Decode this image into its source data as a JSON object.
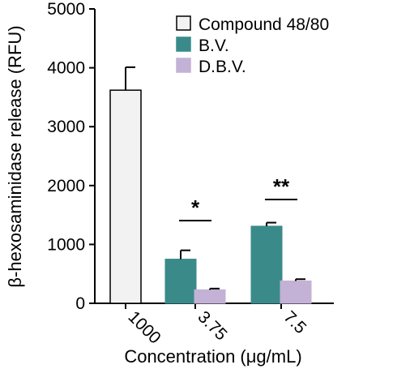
{
  "chart_data": {
    "type": "bar",
    "xlabel": "Concentration (μg/mL)",
    "ylabel": "β-hexosaminidase release (RFU)",
    "ylim": [
      0,
      5000
    ],
    "yticks": [
      "0",
      "1000",
      "2000",
      "3000",
      "4000",
      "5000"
    ],
    "legend_position": "top-right",
    "categories": [
      "1000",
      "3.75",
      "7.5"
    ],
    "series": [
      {
        "name": "Compound 48/80",
        "color": "#f2f2f2",
        "values": [
          3620,
          null,
          null
        ],
        "errors": [
          390,
          null,
          null
        ]
      },
      {
        "name": "B.V.",
        "color": "#3a8a8a",
        "values": [
          null,
          750,
          1310
        ],
        "errors": [
          null,
          150,
          60
        ]
      },
      {
        "name": "D.B.V.",
        "color": "#c3b1d6",
        "values": [
          null,
          230,
          380
        ],
        "errors": [
          null,
          20,
          30
        ]
      }
    ],
    "significance": [
      {
        "category": "3.75",
        "label": "*"
      },
      {
        "category": "7.5",
        "label": "**"
      }
    ]
  }
}
